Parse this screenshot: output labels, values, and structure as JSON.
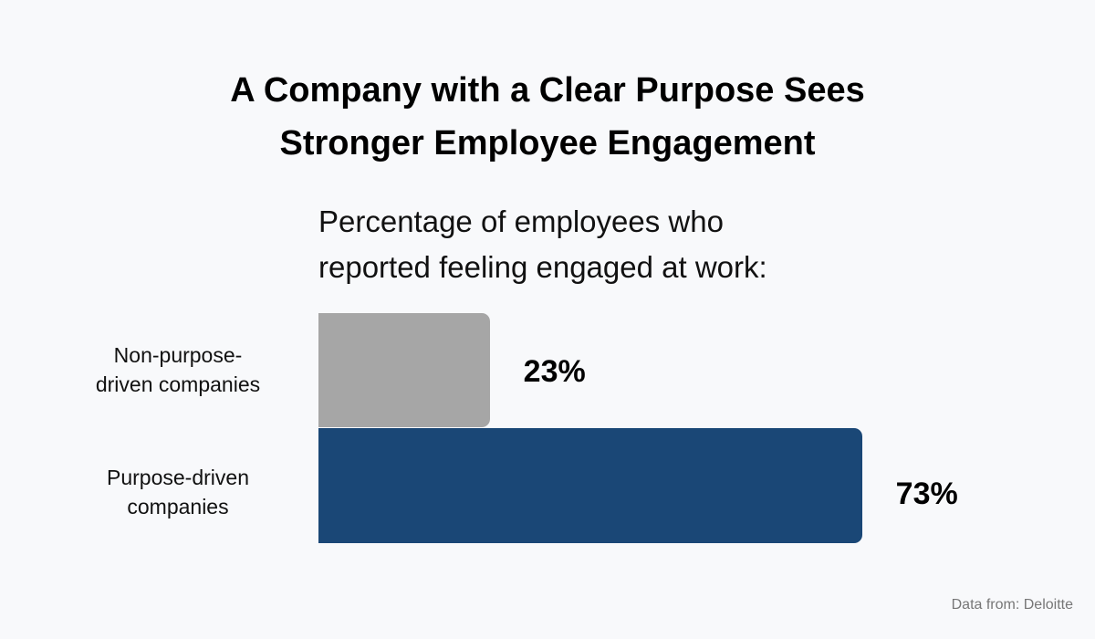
{
  "chart_data": {
    "type": "bar",
    "orientation": "horizontal",
    "title": "A Company with a Clear Purpose Sees Stronger Employee Engagement",
    "title_lines": [
      "A Company with a Clear Purpose Sees",
      "Stronger Employee Engagement"
    ],
    "subtitle_lines": [
      "Percentage of employees who",
      "reported feeling engaged at work:"
    ],
    "categories": [
      "Non-purpose-driven companies",
      "Purpose-driven companies"
    ],
    "category_lines": [
      [
        "Non-purpose-",
        "driven companies"
      ],
      [
        "Purpose-driven",
        "companies"
      ]
    ],
    "values": [
      23,
      73
    ],
    "value_labels": [
      "23%",
      "73%"
    ],
    "colors": [
      "#a6a6a6",
      "#1a4776"
    ],
    "xlim": [
      0,
      100
    ],
    "grid": false,
    "source": "Data from: Deloitte"
  }
}
